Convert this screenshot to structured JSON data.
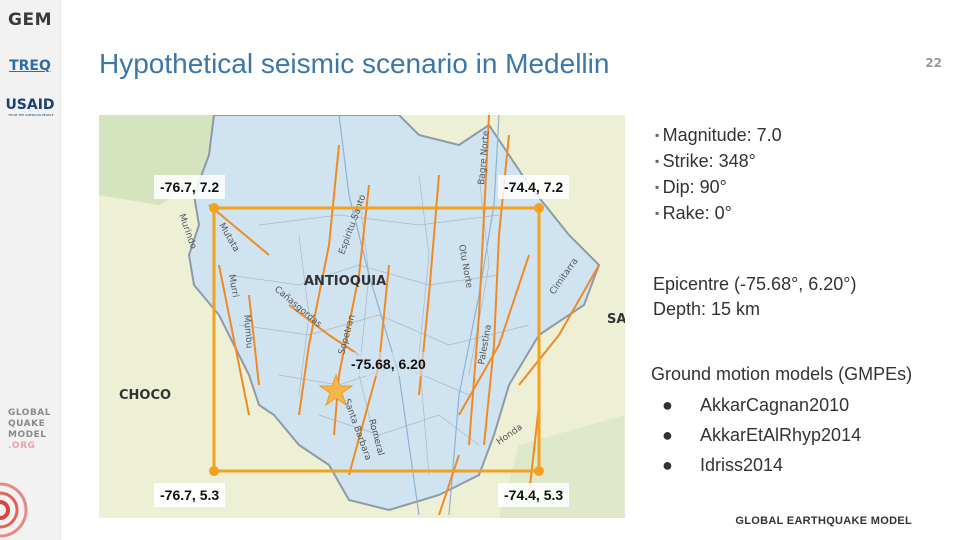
{
  "sidebar": {
    "logo_gem": "GEM",
    "logo_treq": "TREQ",
    "logo_usaid": "USAID",
    "logo_usaid_sub": "FROM THE AMERICAN PEOPLE",
    "gqm_lines": [
      "GLOBAL",
      "QUAKE",
      "MODEL",
      ".ORG"
    ]
  },
  "slide": {
    "title": "Hypothetical seismic scenario in Medellin",
    "page_number": "22",
    "footer": "GLOBAL EARTHQUAKE MODEL"
  },
  "map": {
    "region_labels": {
      "antioquia": "ANTIOQUIA",
      "choco": "CHOCO",
      "santander_partial": "SA"
    },
    "fault_labels": [
      "Murri",
      "Mutata",
      "Mumbu",
      "Espiritu Santo",
      "Sopetran",
      "Romeral",
      "Santa Barbara",
      "Otu Norte",
      "Palestina",
      "Cimitarra",
      "Bagre Norte",
      "Honda",
      "Murindo",
      "Cañasgordas"
    ],
    "corners": {
      "top_left": "-76.7, 7.2",
      "top_right": "-74.4, 7.2",
      "bottom_left": "-76.7, 5.3",
      "bottom_right": "-74.4, 5.3"
    },
    "epicentre_label": "-75.68, 6.20",
    "colors": {
      "region_fill": "#cfe3f1",
      "outside_fill": "#eef0d6",
      "box": "#f2a21e",
      "star": "#f6b64a",
      "fault": "#f08a22"
    }
  },
  "parameters": {
    "bullets": [
      "Magnitude: 7.0",
      "Strike: 348°",
      "Dip: 90°",
      "Rake: 0°"
    ],
    "epicentre": "Epicentre (-75.68°, 6.20°)",
    "depth": "Depth: 15 km"
  },
  "gmpe": {
    "title": "Ground motion models (GMPEs)",
    "bullet_symbol": "●",
    "items": [
      "AkkarCagnan2010",
      "AkkarEtAlRhyp2014",
      "Idriss2014"
    ]
  }
}
